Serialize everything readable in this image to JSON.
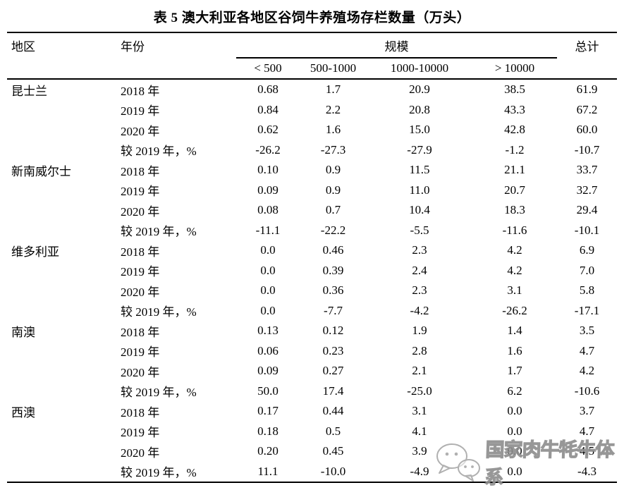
{
  "title": "表 5 澳大利亚各地区谷饲牛养殖场存栏数量（万头）",
  "table": {
    "headers": {
      "region": "地区",
      "year": "年份",
      "scale_group": "规模",
      "total": "总计",
      "scale_cols": [
        "< 500",
        "500-1000",
        "1000-10000",
        "> 10000"
      ]
    },
    "regions": [
      {
        "name": "昆士兰",
        "rows": [
          {
            "label": "2018 年",
            "values": [
              "0.68",
              "1.7",
              "20.9",
              "38.5",
              "61.9"
            ]
          },
          {
            "label": "2019 年",
            "values": [
              "0.84",
              "2.2",
              "20.8",
              "43.3",
              "67.2"
            ]
          },
          {
            "label": "2020 年",
            "values": [
              "0.62",
              "1.6",
              "15.0",
              "42.8",
              "60.0"
            ]
          },
          {
            "label": "较 2019 年，%",
            "values": [
              "-26.2",
              "-27.3",
              "-27.9",
              "-1.2",
              "-10.7"
            ]
          }
        ]
      },
      {
        "name": "新南威尔士",
        "rows": [
          {
            "label": "2018 年",
            "values": [
              "0.10",
              "0.9",
              "11.5",
              "21.1",
              "33.7"
            ]
          },
          {
            "label": "2019 年",
            "values": [
              "0.09",
              "0.9",
              "11.0",
              "20.7",
              "32.7"
            ]
          },
          {
            "label": "2020 年",
            "values": [
              "0.08",
              "0.7",
              "10.4",
              "18.3",
              "29.4"
            ]
          },
          {
            "label": "较 2019 年，%",
            "values": [
              "-11.1",
              "-22.2",
              "-5.5",
              "-11.6",
              "-10.1"
            ]
          }
        ]
      },
      {
        "name": "维多利亚",
        "rows": [
          {
            "label": "2018 年",
            "values": [
              "0.0",
              "0.46",
              "2.3",
              "4.2",
              "6.9"
            ]
          },
          {
            "label": "2019 年",
            "values": [
              "0.0",
              "0.39",
              "2.4",
              "4.2",
              "7.0"
            ]
          },
          {
            "label": "2020 年",
            "values": [
              "0.0",
              "0.36",
              "2.3",
              "3.1",
              "5.8"
            ]
          },
          {
            "label": "较 2019 年，%",
            "values": [
              "0.0",
              "-7.7",
              "-4.2",
              "-26.2",
              "-17.1"
            ]
          }
        ]
      },
      {
        "name": "南澳",
        "rows": [
          {
            "label": "2018 年",
            "values": [
              "0.13",
              "0.12",
              "1.9",
              "1.4",
              "3.5"
            ]
          },
          {
            "label": "2019 年",
            "values": [
              "0.06",
              "0.23",
              "2.8",
              "1.6",
              "4.7"
            ]
          },
          {
            "label": "2020 年",
            "values": [
              "0.09",
              "0.27",
              "2.1",
              "1.7",
              "4.2"
            ]
          },
          {
            "label": "较 2019 年，%",
            "values": [
              "50.0",
              "17.4",
              "-25.0",
              "6.2",
              "-10.6"
            ]
          }
        ]
      },
      {
        "name": "西澳",
        "rows": [
          {
            "label": "2018 年",
            "values": [
              "0.17",
              "0.44",
              "3.1",
              "0.0",
              "3.7"
            ]
          },
          {
            "label": "2019 年",
            "values": [
              "0.18",
              "0.5",
              "4.1",
              "0.0",
              "4.7"
            ]
          },
          {
            "label": "2020 年",
            "values": [
              "0.20",
              "0.45",
              "3.9",
              "0.0",
              "4.5"
            ]
          },
          {
            "label": "较 2019 年，%",
            "values": [
              "11.1",
              "-10.0",
              "-4.9",
              "0.0",
              "-4.3"
            ]
          }
        ]
      }
    ]
  },
  "watermark": {
    "text": "国家肉牛牦牛体系",
    "icon": "wechat-chat-bubbles-icon",
    "color": "#8c8c8c"
  }
}
